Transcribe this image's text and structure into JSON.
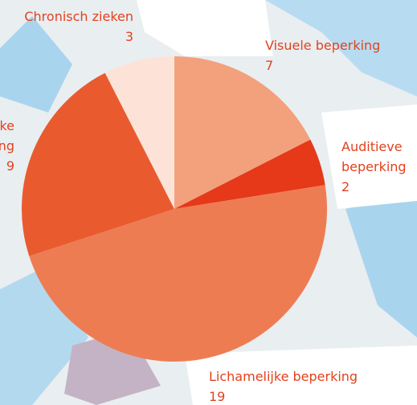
{
  "chart_data": {
    "type": "pie",
    "categories": [
      [
        "Visuele beperking"
      ],
      [
        "Auditieve",
        "beperking"
      ],
      [
        "Lichamelijke beperking"
      ],
      [
        "ke",
        "ng"
      ],
      [
        "Chronisch zieken"
      ]
    ],
    "values": [
      7,
      2,
      19,
      9,
      3
    ],
    "colors": [
      "#f2a17c",
      "#e5391a",
      "#ee7c53",
      "#e95b2f",
      "#fde3d7"
    ],
    "label_color": "#e2421e"
  }
}
